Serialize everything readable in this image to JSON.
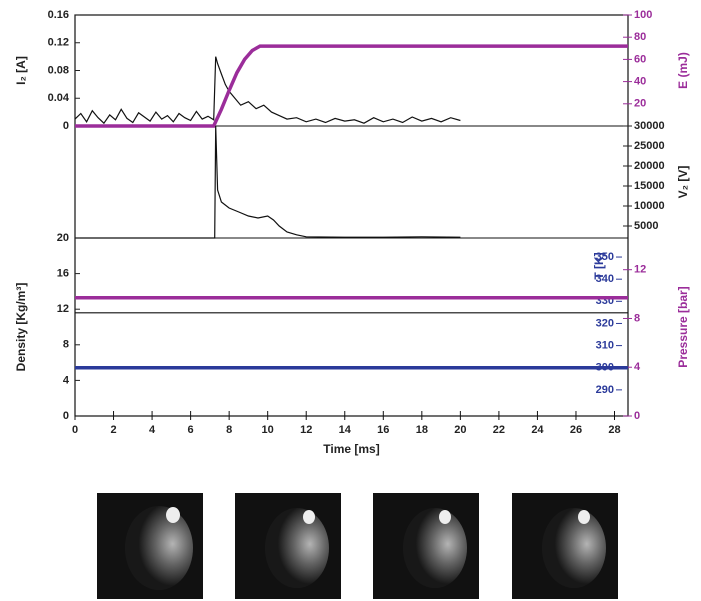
{
  "chart_data": [
    {
      "type": "line",
      "xlim": [
        0,
        28.7
      ],
      "ylabel": "I₂ [A]",
      "ylim": [
        0,
        0.16
      ],
      "yticks": [
        0,
        0.04,
        0.08,
        0.12,
        0.16
      ],
      "y2label": "E (mJ)",
      "y2lim": [
        0,
        100
      ],
      "y2ticks": [
        20,
        40,
        60,
        80,
        100
      ],
      "series": [
        {
          "color": "#111111",
          "axis": "y",
          "x": [
            0,
            0.3,
            0.6,
            0.9,
            1.2,
            1.5,
            1.8,
            2.1,
            2.4,
            2.7,
            3,
            3.3,
            3.6,
            3.9,
            4.2,
            4.5,
            4.8,
            5.1,
            5.4,
            5.7,
            6,
            6.3,
            6.6,
            6.9,
            7.2,
            7.3,
            7.4,
            7.6,
            7.8,
            8,
            8.3,
            8.6,
            9,
            9.4,
            9.8,
            10.2,
            10.6,
            11,
            11.5,
            12,
            12.5,
            13,
            13.5,
            14,
            14.5,
            15,
            15.5,
            16,
            16.5,
            17,
            17.5,
            18,
            18.5,
            19,
            19.5,
            20
          ],
          "values": [
            0.01,
            0.018,
            0.006,
            0.022,
            0.012,
            0.004,
            0.016,
            0.009,
            0.024,
            0.011,
            0.005,
            0.019,
            0.013,
            0.007,
            0.02,
            0.01,
            0.015,
            0.006,
            0.018,
            0.012,
            0.008,
            0.021,
            0.01,
            0.014,
            0.009,
            0.1,
            0.09,
            0.075,
            0.06,
            0.05,
            0.04,
            0.03,
            0.035,
            0.025,
            0.03,
            0.02,
            0.015,
            0.01,
            0.012,
            0.006,
            0.01,
            0.005,
            0.011,
            0.007,
            0.009,
            0.004,
            0.012,
            0.006,
            0.01,
            0.005,
            0.013,
            0.007,
            0.011,
            0.006,
            0.012,
            0.008
          ]
        },
        {
          "color": "#9b2d9a",
          "axis": "y2",
          "x": [
            0,
            7.2,
            7.6,
            8,
            8.4,
            8.8,
            9.2,
            9.6,
            28.7
          ],
          "values": [
            0,
            0,
            15,
            32,
            48,
            60,
            68,
            72,
            72
          ]
        }
      ]
    },
    {
      "type": "line",
      "xlim": [
        0,
        28.7
      ],
      "ylabel": "V₂ [V]",
      "ylim": [
        2000,
        30000
      ],
      "yticks": [
        5000,
        10000,
        15000,
        20000,
        25000,
        30000
      ],
      "series": [
        {
          "color": "#111111",
          "axis": "y",
          "x": [
            0,
            7.25,
            7.3,
            7.4,
            7.6,
            8,
            8.5,
            9,
            9.5,
            10,
            10.3,
            10.6,
            11,
            11.5,
            12,
            14,
            16,
            18,
            20
          ],
          "values": [
            2000,
            2000,
            30000,
            14000,
            11000,
            9500,
            8500,
            7500,
            7000,
            7500,
            6500,
            5000,
            3500,
            2800,
            2300,
            2200,
            2200,
            2300,
            2200
          ]
        }
      ]
    },
    {
      "type": "line",
      "xlim": [
        0,
        28.7
      ],
      "xticks": [
        0,
        2,
        4,
        6,
        8,
        10,
        12,
        14,
        16,
        18,
        20,
        22,
        24,
        26,
        28
      ],
      "xlabel": "Time [ms]",
      "ylabel": "Density [Kg/m³]",
      "ylim": [
        0,
        20
      ],
      "yticks": [
        0,
        4,
        8,
        12,
        16,
        20
      ],
      "y2label": "Pressure [bar]",
      "y2lim": [
        0,
        14.6
      ],
      "y2ticks": [
        0,
        4,
        8,
        12
      ],
      "y3label": "T [K]",
      "y3lim": [
        278.2,
        358.6
      ],
      "y3ticks": [
        290,
        300,
        310,
        320,
        330,
        340,
        350
      ],
      "series": [
        {
          "color": "#111111",
          "axis": "y",
          "x": [
            0,
            28.7
          ],
          "values": [
            11.6,
            11.6
          ]
        },
        {
          "color": "#9b2d9a",
          "axis": "y2",
          "x": [
            0,
            28.7
          ],
          "values": [
            9.7,
            9.7
          ]
        },
        {
          "color": "#2b3a9a",
          "axis": "y3",
          "x": [
            0,
            28.7
          ],
          "values": [
            300,
            300
          ]
        }
      ]
    }
  ]
}
